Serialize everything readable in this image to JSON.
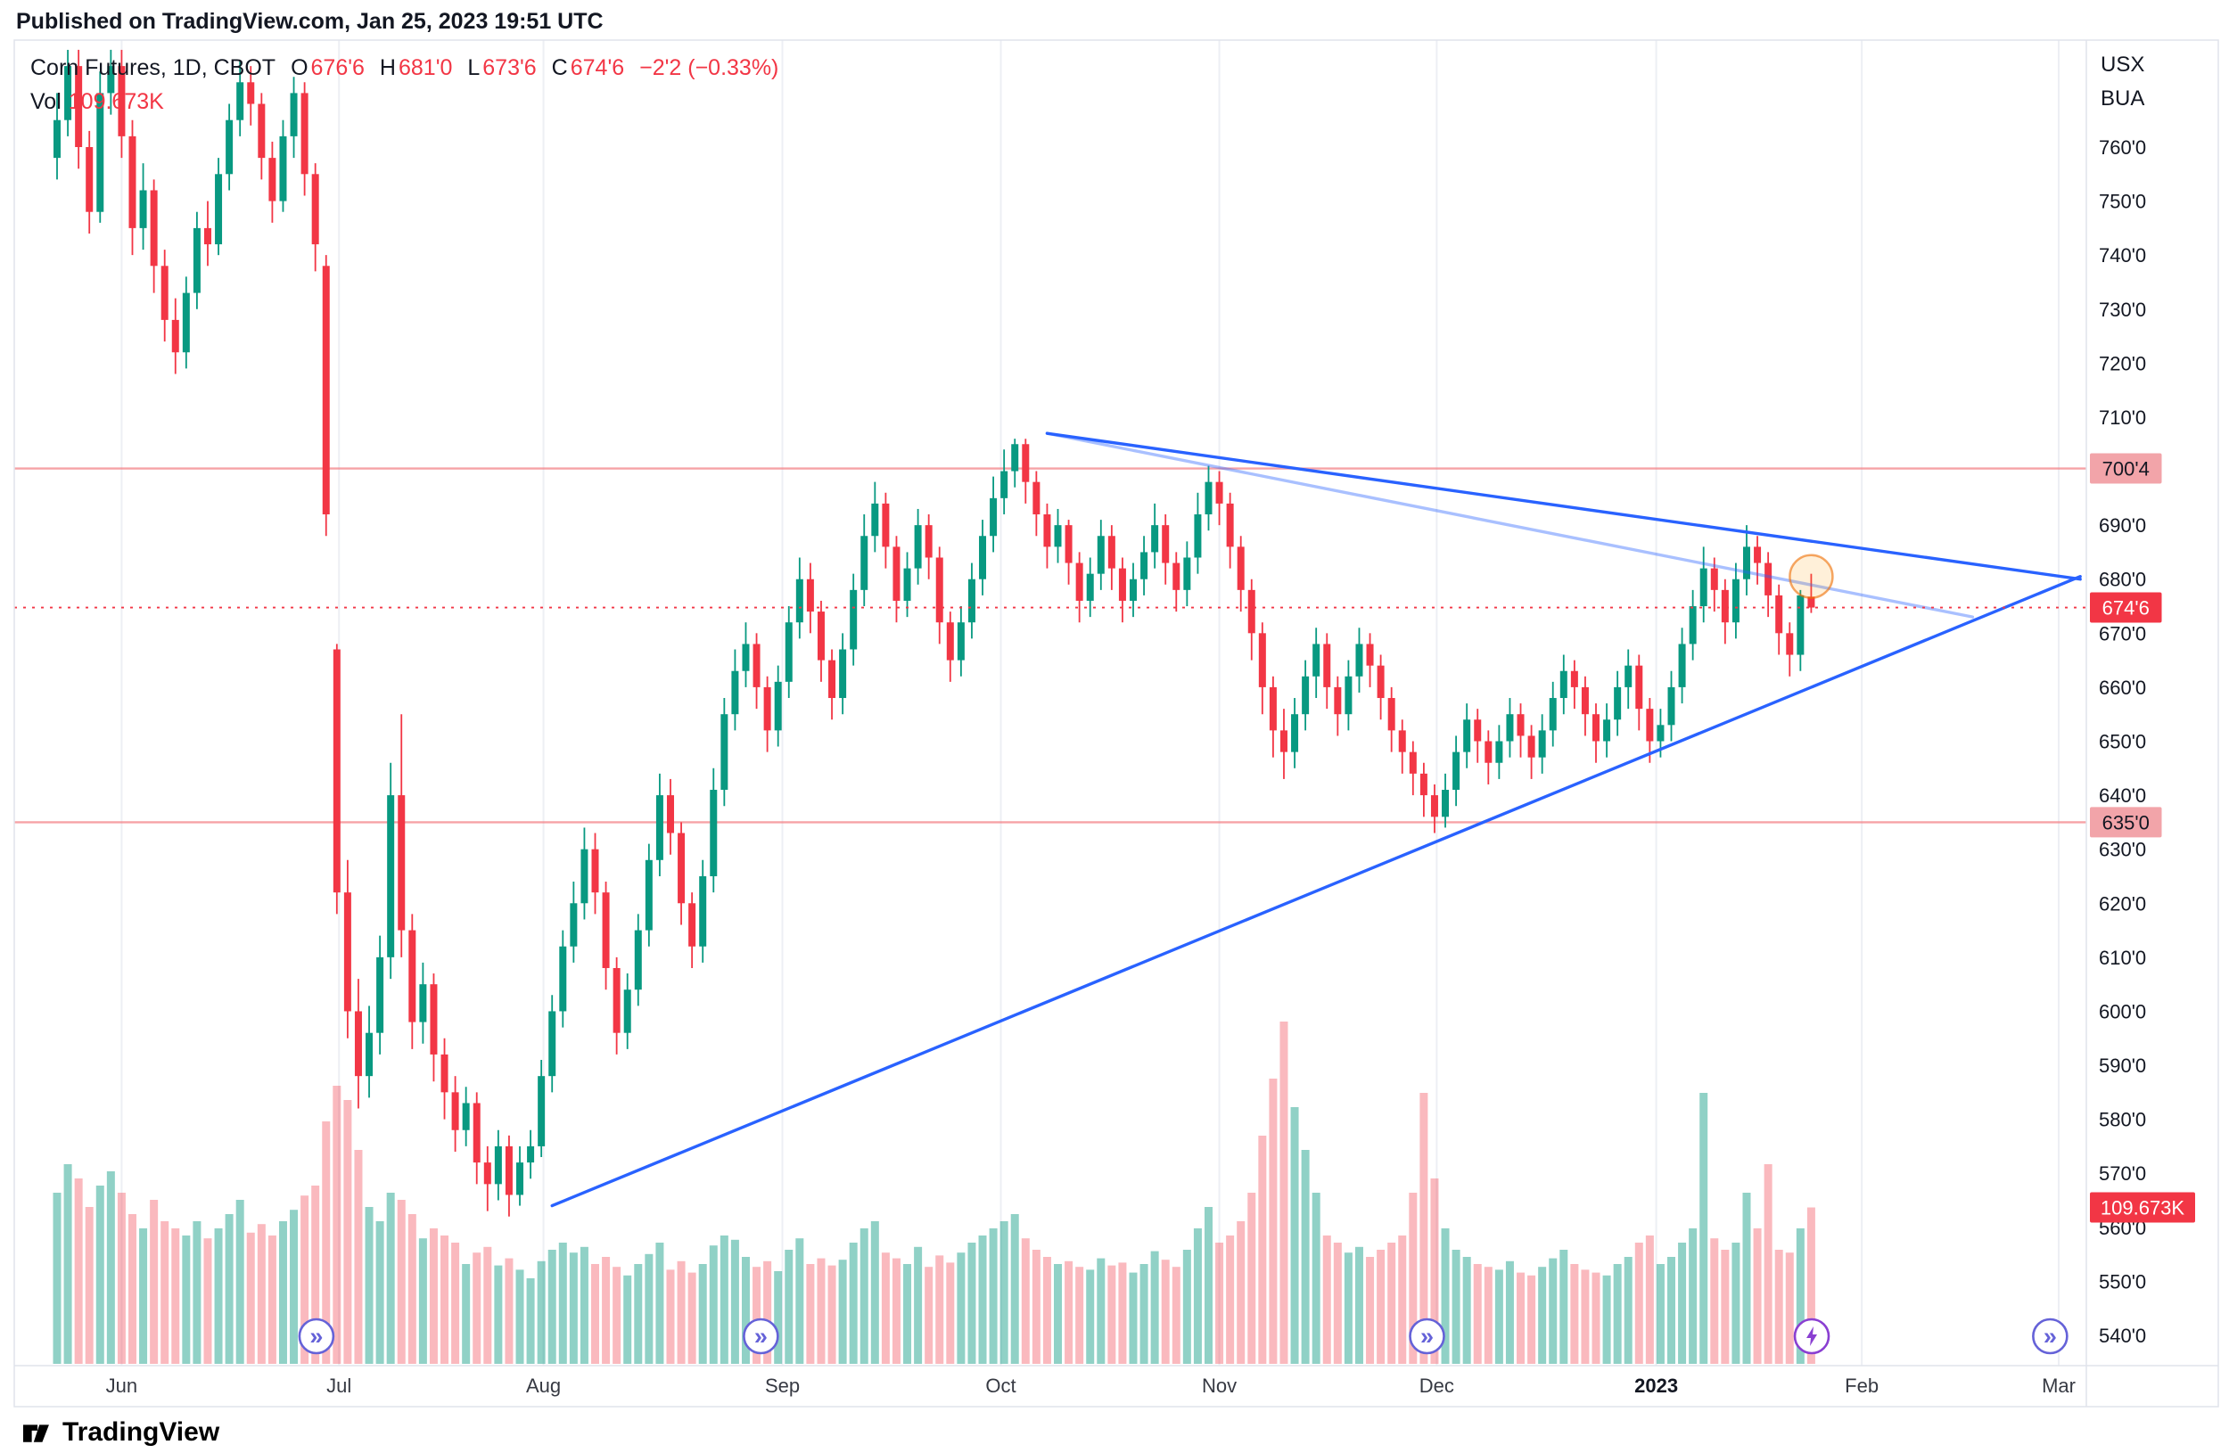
{
  "header": {
    "published": "Published on TradingView.com, Jan 25, 2023 19:51 UTC"
  },
  "legend": {
    "title": "Corn Futures, 1D, CBOT",
    "fields": {
      "o": {
        "k": "O",
        "v": "676'6"
      },
      "h": {
        "k": "H",
        "v": "681'0"
      },
      "l": {
        "k": "L",
        "v": "673'6"
      },
      "c": {
        "k": "C",
        "v": "674'6"
      }
    },
    "change": "−2'2 (−0.33%)",
    "vol_label": "Vol",
    "vol_value": "109.673K"
  },
  "axis_units": [
    "USX",
    "BUA"
  ],
  "footer": {
    "brand": "TradingView"
  },
  "colors": {
    "up": "#089981",
    "down": "#f23645",
    "trend": "#2962ff",
    "trend_faded": "rgba(41,98,255,0.4)",
    "level_line": "#f48b90",
    "level_badge": "#f2a4a9",
    "last_badge": "#f23645",
    "marker_next": "#6562d8",
    "marker_bolt": "#8a3fd1",
    "grid": "#edeff4",
    "frame": "#e0e3eb",
    "axis_text": "#131722"
  },
  "chart_data": {
    "type": "candlestick",
    "symbol": "Corn Futures",
    "interval": "1D",
    "exchange": "CBOT",
    "unit": "USX",
    "last": {
      "o": "676'6",
      "h": "681'0",
      "l": "673'6",
      "c": "674'6",
      "change": "−2'2 (−0.33%)",
      "volume": "109.673K"
    },
    "ylim": [
      540,
      785
    ],
    "price_ticks": [
      {
        "t": "760'0",
        "p": 760
      },
      {
        "t": "750'0",
        "p": 750
      },
      {
        "t": "740'0",
        "p": 740
      },
      {
        "t": "730'0",
        "p": 730
      },
      {
        "t": "720'0",
        "p": 720
      },
      {
        "t": "710'0",
        "p": 710
      },
      {
        "t": "700'0",
        "p": 700
      },
      {
        "t": "690'0",
        "p": 690
      },
      {
        "t": "680'0",
        "p": 680
      },
      {
        "t": "670'0",
        "p": 670
      },
      {
        "t": "660'0",
        "p": 660
      },
      {
        "t": "650'0",
        "p": 650
      },
      {
        "t": "640'0",
        "p": 640
      },
      {
        "t": "630'0",
        "p": 630
      },
      {
        "t": "620'0",
        "p": 620
      },
      {
        "t": "610'0",
        "p": 610
      },
      {
        "t": "600'0",
        "p": 600
      },
      {
        "t": "590'0",
        "p": 590
      },
      {
        "t": "580'0",
        "p": 580
      },
      {
        "t": "570'0",
        "p": 570
      },
      {
        "t": "560'0",
        "p": 560
      },
      {
        "t": "550'0",
        "p": 550
      },
      {
        "t": "540'0",
        "p": 540
      }
    ],
    "time_ticks": [
      {
        "t": "Jun",
        "i": 6
      },
      {
        "t": "Jul",
        "i": 26.2
      },
      {
        "t": "Aug",
        "i": 45.2
      },
      {
        "t": "Sep",
        "i": 67.4
      },
      {
        "t": "Oct",
        "i": 87.7
      },
      {
        "t": "Nov",
        "i": 108
      },
      {
        "t": "Dec",
        "i": 128.2
      },
      {
        "t": "2023",
        "i": 148.6,
        "bold": true
      },
      {
        "t": "Feb",
        "i": 167.7
      },
      {
        "t": "Mar",
        "i": 186
      }
    ],
    "levels": [
      {
        "price": 700.5,
        "label": "700'4"
      },
      {
        "price": 635.0,
        "label": "635'0"
      }
    ],
    "last_price": {
      "value": 674.75,
      "label": "674'6"
    },
    "volume_label": {
      "value": 109.673,
      "label": "109.673K"
    },
    "trendlines": [
      {
        "name": "upper-descending",
        "i1": 92,
        "p1": 707,
        "i2": 188,
        "p2": 680
      },
      {
        "name": "upper-descending-faded",
        "i1": 92,
        "p1": 707,
        "i2": 178,
        "p2": 673,
        "faded": true
      },
      {
        "name": "lower-ascending",
        "i1": 46,
        "p1": 564,
        "i2": 188,
        "p2": 680.5
      }
    ],
    "highlight": {
      "i": 163,
      "p": 680.5
    },
    "markers": [
      {
        "glyph": "next",
        "i": 24.1
      },
      {
        "glyph": "next",
        "i": 65.4
      },
      {
        "glyph": "next",
        "i": 127.3
      },
      {
        "glyph": "bolt",
        "i": 163.05
      },
      {
        "glyph": "next",
        "i": 185.2
      }
    ],
    "candles": [
      [
        758,
        770,
        754,
        765,
        120
      ],
      [
        765,
        778,
        762,
        775,
        140
      ],
      [
        775,
        778,
        756,
        760,
        130
      ],
      [
        760,
        763,
        744,
        748,
        110
      ],
      [
        748,
        774,
        746,
        770,
        125
      ],
      [
        770,
        778,
        766,
        775,
        135
      ],
      [
        775,
        778,
        758,
        762,
        120
      ],
      [
        762,
        765,
        740,
        745,
        105
      ],
      [
        745,
        757,
        741,
        752,
        95
      ],
      [
        752,
        754,
        733,
        738,
        115
      ],
      [
        738,
        741,
        724,
        728,
        100
      ],
      [
        728,
        732,
        718,
        722,
        95
      ],
      [
        722,
        736,
        719,
        733,
        90
      ],
      [
        733,
        748,
        730,
        745,
        100
      ],
      [
        745,
        750,
        738,
        742,
        88
      ],
      [
        742,
        758,
        740,
        755,
        95
      ],
      [
        755,
        768,
        752,
        765,
        105
      ],
      [
        765,
        776,
        762,
        772,
        115
      ],
      [
        772,
        775,
        764,
        768,
        92
      ],
      [
        768,
        770,
        754,
        758,
        98
      ],
      [
        758,
        761,
        746,
        750,
        90
      ],
      [
        750,
        765,
        748,
        762,
        100
      ],
      [
        762,
        773,
        758,
        770,
        108
      ],
      [
        770,
        772,
        751,
        755,
        118
      ],
      [
        755,
        757,
        737,
        742,
        125
      ],
      [
        738,
        740,
        688,
        692,
        170
      ],
      [
        667,
        668,
        618,
        622,
        195
      ],
      [
        622,
        628,
        595,
        600,
        185
      ],
      [
        600,
        606,
        582,
        588,
        150
      ],
      [
        588,
        601,
        584,
        596,
        110
      ],
      [
        596,
        614,
        592,
        610,
        100
      ],
      [
        610,
        646,
        606,
        640,
        120
      ],
      [
        640,
        655,
        610,
        615,
        115
      ],
      [
        615,
        618,
        593,
        598,
        105
      ],
      [
        598,
        609,
        594,
        605,
        88
      ],
      [
        605,
        607,
        587,
        592,
        95
      ],
      [
        592,
        595,
        580,
        585,
        90
      ],
      [
        585,
        588,
        574,
        578,
        85
      ],
      [
        578,
        586,
        575,
        583,
        70
      ],
      [
        583,
        585,
        568,
        572,
        78
      ],
      [
        572,
        575,
        563,
        568,
        82
      ],
      [
        568,
        578,
        565,
        575,
        69
      ],
      [
        575,
        577,
        562,
        566,
        74
      ],
      [
        566,
        575,
        564,
        572,
        66
      ],
      [
        572,
        578,
        569,
        575,
        60
      ],
      [
        575,
        591,
        573,
        588,
        72
      ],
      [
        588,
        603,
        585,
        600,
        80
      ],
      [
        600,
        615,
        597,
        612,
        85
      ],
      [
        612,
        624,
        609,
        620,
        78
      ],
      [
        620,
        634,
        617,
        630,
        82
      ],
      [
        630,
        633,
        618,
        622,
        70
      ],
      [
        622,
        624,
        604,
        608,
        75
      ],
      [
        608,
        610,
        592,
        596,
        68
      ],
      [
        596,
        607,
        593,
        604,
        62
      ],
      [
        604,
        618,
        601,
        615,
        70
      ],
      [
        615,
        631,
        612,
        628,
        77
      ],
      [
        628,
        644,
        625,
        640,
        85
      ],
      [
        640,
        643,
        629,
        633,
        66
      ],
      [
        633,
        635,
        616,
        620,
        72
      ],
      [
        620,
        622,
        608,
        612,
        64
      ],
      [
        612,
        628,
        609,
        625,
        70
      ],
      [
        625,
        645,
        622,
        641,
        83
      ],
      [
        641,
        658,
        638,
        655,
        90
      ],
      [
        655,
        667,
        652,
        663,
        87
      ],
      [
        663,
        672,
        660,
        668,
        75
      ],
      [
        668,
        670,
        656,
        660,
        68
      ],
      [
        660,
        662,
        648,
        652,
        72
      ],
      [
        652,
        664,
        649,
        661,
        65
      ],
      [
        661,
        675,
        658,
        672,
        80
      ],
      [
        672,
        684,
        669,
        680,
        88
      ],
      [
        680,
        683,
        670,
        674,
        70
      ],
      [
        674,
        676,
        661,
        665,
        74
      ],
      [
        665,
        667,
        654,
        658,
        69
      ],
      [
        658,
        670,
        655,
        667,
        73
      ],
      [
        667,
        681,
        664,
        678,
        85
      ],
      [
        678,
        692,
        675,
        688,
        95
      ],
      [
        688,
        698,
        685,
        694,
        100
      ],
      [
        694,
        696,
        682,
        686,
        78
      ],
      [
        686,
        688,
        672,
        676,
        74
      ],
      [
        676,
        685,
        673,
        682,
        70
      ],
      [
        682,
        693,
        679,
        690,
        82
      ],
      [
        690,
        692,
        680,
        684,
        68
      ],
      [
        684,
        686,
        668,
        672,
        76
      ],
      [
        672,
        674,
        661,
        665,
        71
      ],
      [
        665,
        675,
        662,
        672,
        78
      ],
      [
        672,
        683,
        669,
        680,
        85
      ],
      [
        680,
        691,
        677,
        688,
        90
      ],
      [
        688,
        699,
        685,
        695,
        95
      ],
      [
        695,
        704,
        692,
        700,
        100
      ],
      [
        700,
        706,
        697,
        705,
        105
      ],
      [
        705,
        706,
        694,
        698,
        88
      ],
      [
        698,
        700,
        688,
        692,
        80
      ],
      [
        692,
        694,
        682,
        686,
        75
      ],
      [
        686,
        693,
        683,
        690,
        70
      ],
      [
        690,
        691,
        679,
        683,
        72
      ],
      [
        683,
        685,
        672,
        676,
        68
      ],
      [
        676,
        684,
        673,
        681,
        66
      ],
      [
        681,
        691,
        678,
        688,
        74
      ],
      [
        688,
        690,
        678,
        682,
        69
      ],
      [
        682,
        684,
        672,
        676,
        71
      ],
      [
        676,
        683,
        673,
        680,
        64
      ],
      [
        680,
        688,
        677,
        685,
        70
      ],
      [
        685,
        694,
        682,
        690,
        79
      ],
      [
        690,
        692,
        679,
        683,
        73
      ],
      [
        683,
        685,
        674,
        678,
        68
      ],
      [
        678,
        687,
        675,
        684,
        80
      ],
      [
        684,
        696,
        681,
        692,
        95
      ],
      [
        692,
        701,
        689,
        698,
        110
      ],
      [
        698,
        700,
        690,
        694,
        85
      ],
      [
        694,
        696,
        682,
        686,
        90
      ],
      [
        686,
        688,
        674,
        678,
        100
      ],
      [
        678,
        680,
        665,
        670,
        120
      ],
      [
        670,
        672,
        655,
        660,
        160
      ],
      [
        660,
        662,
        647,
        652,
        200
      ],
      [
        652,
        656,
        643,
        648,
        240
      ],
      [
        648,
        658,
        645,
        655,
        180
      ],
      [
        655,
        665,
        652,
        662,
        150
      ],
      [
        662,
        671,
        658,
        668,
        120
      ],
      [
        668,
        670,
        656,
        660,
        90
      ],
      [
        660,
        662,
        651,
        655,
        85
      ],
      [
        655,
        665,
        652,
        662,
        78
      ],
      [
        662,
        671,
        659,
        668,
        82
      ],
      [
        668,
        670,
        660,
        664,
        75
      ],
      [
        664,
        666,
        654,
        658,
        80
      ],
      [
        658,
        660,
        648,
        652,
        85
      ],
      [
        652,
        654,
        644,
        648,
        90
      ],
      [
        648,
        650,
        640,
        644,
        120
      ],
      [
        644,
        646,
        636,
        640,
        190
      ],
      [
        640,
        642,
        633,
        636,
        130
      ],
      [
        636,
        644,
        634,
        641,
        95
      ],
      [
        641,
        651,
        638,
        648,
        80
      ],
      [
        648,
        657,
        645,
        654,
        75
      ],
      [
        654,
        656,
        646,
        650,
        70
      ],
      [
        650,
        652,
        642,
        646,
        68
      ],
      [
        646,
        653,
        643,
        650,
        66
      ],
      [
        650,
        658,
        647,
        655,
        72
      ],
      [
        655,
        657,
        647,
        651,
        64
      ],
      [
        651,
        653,
        643,
        647,
        62
      ],
      [
        647,
        655,
        644,
        652,
        68
      ],
      [
        652,
        661,
        649,
        658,
        74
      ],
      [
        658,
        666,
        655,
        663,
        80
      ],
      [
        663,
        665,
        656,
        660,
        70
      ],
      [
        660,
        662,
        651,
        655,
        66
      ],
      [
        655,
        657,
        646,
        650,
        64
      ],
      [
        650,
        657,
        647,
        654,
        62
      ],
      [
        654,
        663,
        651,
        660,
        70
      ],
      [
        660,
        667,
        656,
        664,
        75
      ],
      [
        664,
        666,
        652,
        656,
        85
      ],
      [
        656,
        658,
        646,
        650,
        90
      ],
      [
        650,
        656,
        647,
        653,
        70
      ],
      [
        653,
        663,
        650,
        660,
        75
      ],
      [
        660,
        671,
        657,
        668,
        85
      ],
      [
        668,
        678,
        665,
        675,
        95
      ],
      [
        675,
        686,
        672,
        682,
        190
      ],
      [
        682,
        684,
        674,
        678,
        88
      ],
      [
        678,
        680,
        668,
        672,
        80
      ],
      [
        672,
        683,
        669,
        680,
        85
      ],
      [
        680,
        690,
        677,
        686,
        120
      ],
      [
        686,
        688,
        679,
        683,
        95
      ],
      [
        683,
        685,
        673,
        677,
        140
      ],
      [
        677,
        679,
        666,
        670,
        80
      ],
      [
        670,
        672,
        662,
        666,
        78
      ],
      [
        666,
        678,
        663,
        677,
        95
      ],
      [
        676.75,
        681,
        673.75,
        674.75,
        109.673
      ]
    ]
  }
}
